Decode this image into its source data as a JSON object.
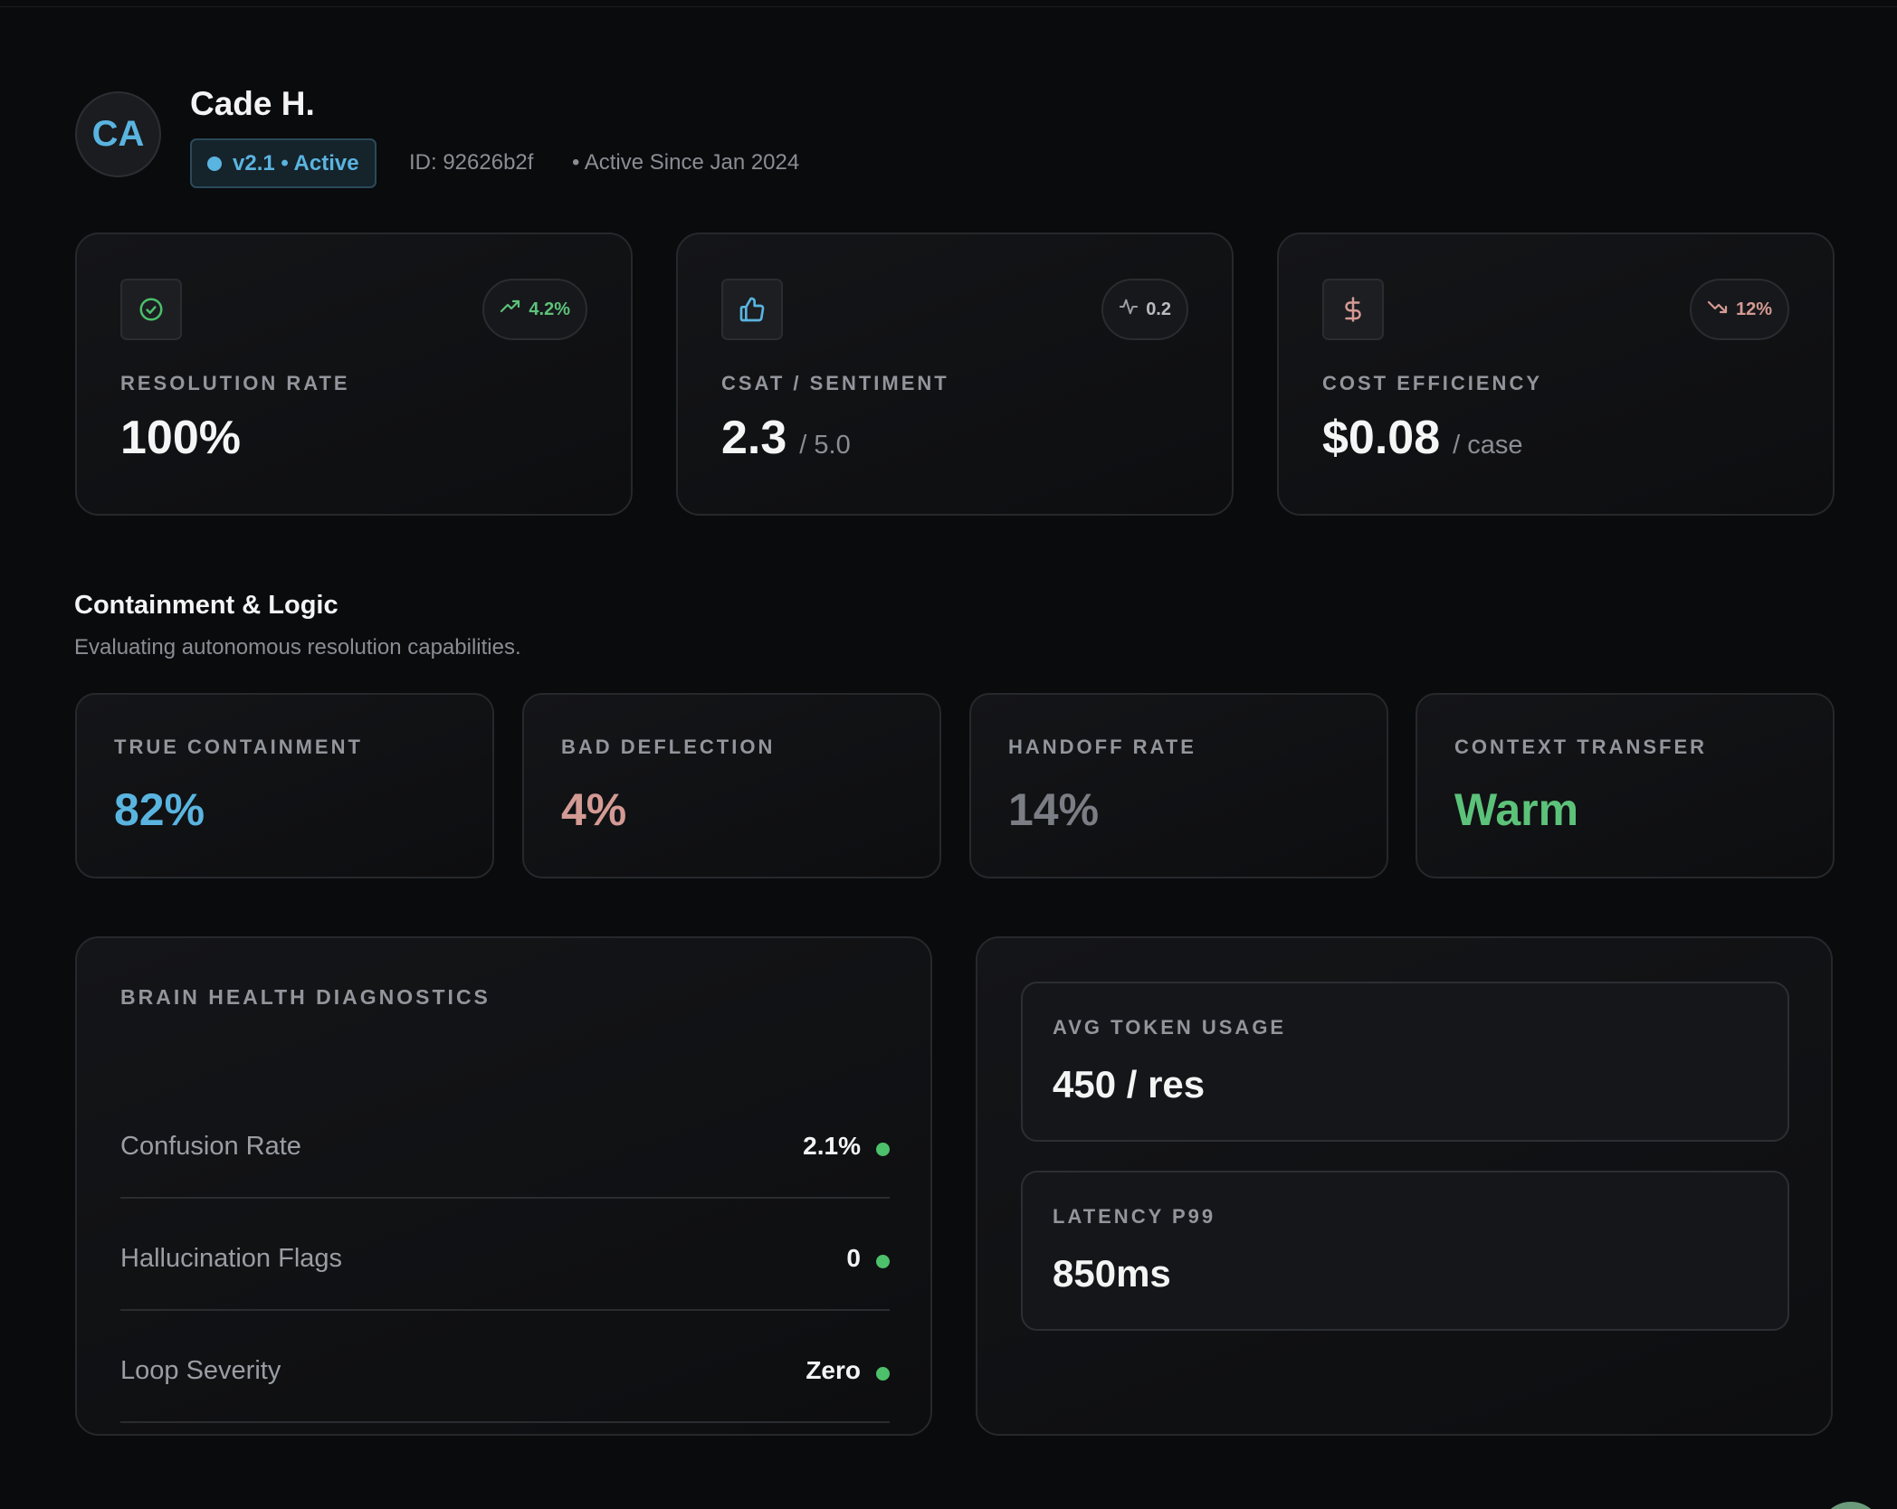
{
  "profile": {
    "initials": "CA",
    "name": "Cade H.",
    "version_badge": "v2.1 • Active",
    "id": "ID: 92626b2f",
    "active_since": "• Active Since Jan 2024"
  },
  "kpis": [
    {
      "label": "RESOLUTION RATE",
      "value": "100%",
      "suffix": "",
      "trend": "4.2%",
      "trend_icon": "trending-up-icon",
      "trend_color": "#5cc27a",
      "icon": "check-circle-icon",
      "icon_color": "#4cc06a"
    },
    {
      "label": "CSAT / SENTIMENT",
      "value": "2.3",
      "suffix": "/ 5.0",
      "trend": "0.2",
      "trend_icon": "activity-icon",
      "trend_color": "#9a9da3",
      "icon": "thumbs-up-icon",
      "icon_color": "#5ab4e0"
    },
    {
      "label": "COST EFFICIENCY",
      "value": "$0.08",
      "suffix": "/ case",
      "trend": "12%",
      "trend_icon": "trending-down-icon",
      "trend_color": "#d49a94",
      "icon": "dollar-icon",
      "icon_color": "#d49a94"
    }
  ],
  "containment": {
    "title": "Containment & Logic",
    "subtitle": "Evaluating autonomous resolution capabilities.",
    "metrics": [
      {
        "label": "TRUE CONTAINMENT",
        "value": "82%",
        "color": "#5ab4e0"
      },
      {
        "label": "BAD DEFLECTION",
        "value": "4%",
        "color": "#d49a94"
      },
      {
        "label": "HANDOFF RATE",
        "value": "14%",
        "color": "#7a7d83"
      },
      {
        "label": "CONTEXT TRANSFER",
        "value": "Warm",
        "color": "#5cc27a"
      }
    ]
  },
  "diagnostics": {
    "title": "BRAIN HEALTH DIAGNOSTICS",
    "rows": [
      {
        "label": "Confusion Rate",
        "value": "2.1%",
        "status_color": "#4cc06a"
      },
      {
        "label": "Hallucination Flags",
        "value": "0",
        "status_color": "#4cc06a"
      },
      {
        "label": "Loop Severity",
        "value": "Zero",
        "status_color": "#4cc06a"
      }
    ]
  },
  "performance": [
    {
      "label": "AVG TOKEN USAGE",
      "value": "450 / res"
    },
    {
      "label": "LATENCY P99",
      "value": "850ms"
    }
  ]
}
